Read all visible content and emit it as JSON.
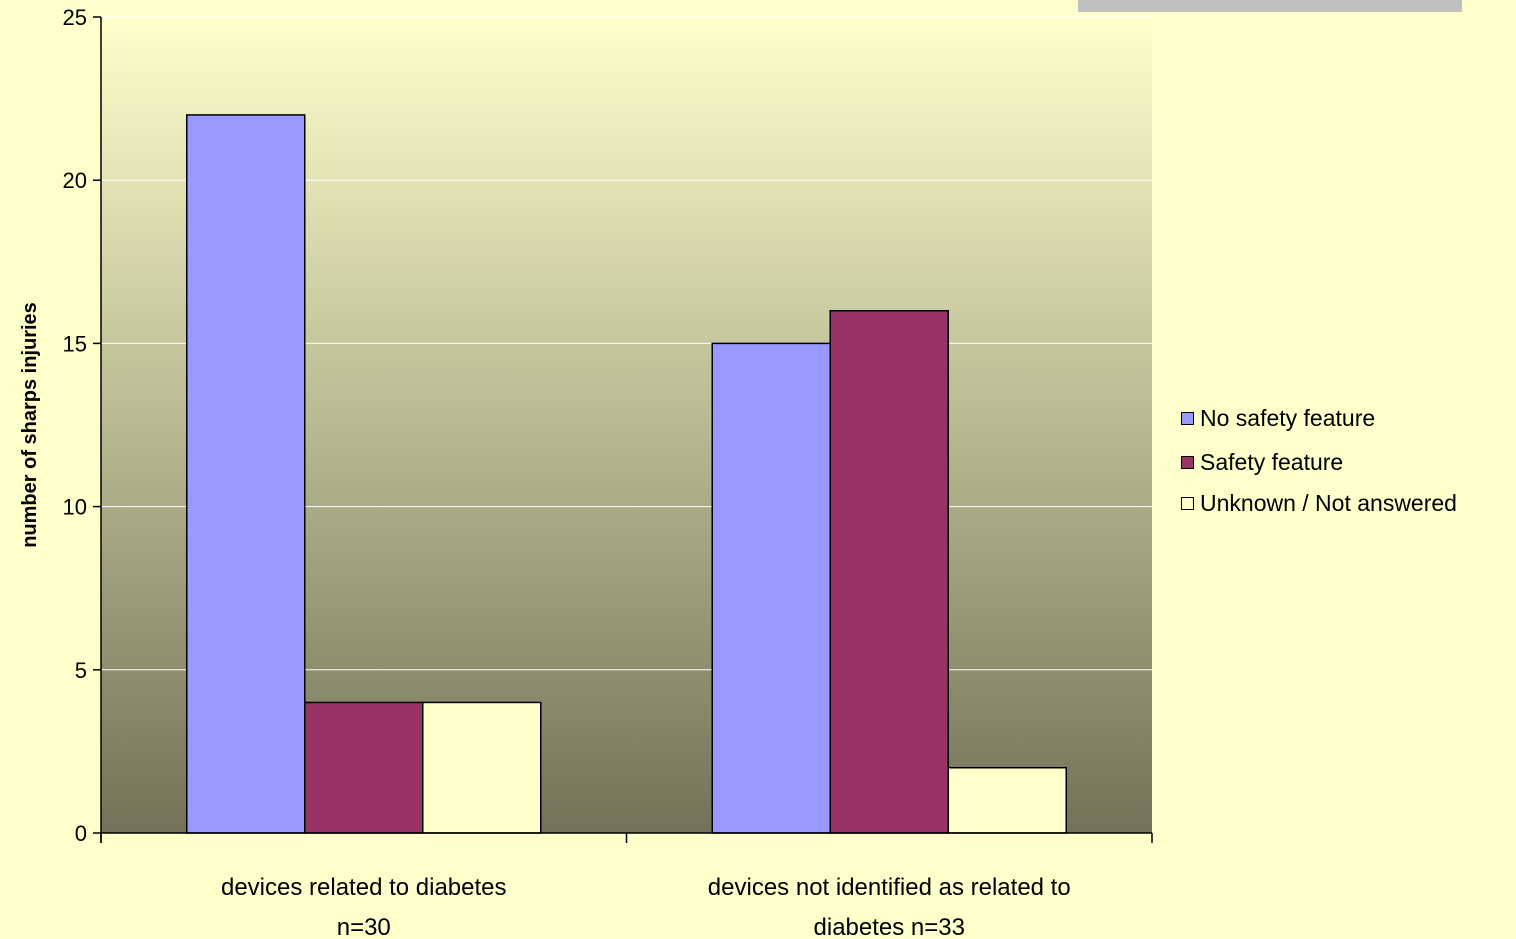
{
  "chart_data": {
    "type": "bar",
    "categories": [
      "devices related to diabetes n=30",
      "devices not identified as related to diabetes n=33"
    ],
    "category_lines": [
      [
        "devices related to diabetes",
        "n=30"
      ],
      [
        "devices not identified as related to",
        "diabetes n=33"
      ]
    ],
    "series": [
      {
        "name": "No safety feature",
        "color": "#9999FF",
        "values": [
          22,
          15
        ]
      },
      {
        "name": "Safety feature",
        "color": "#993366",
        "values": [
          4,
          16
        ]
      },
      {
        "name": "Unknown / Not answered",
        "color": "#FFFFCC",
        "values": [
          4,
          2
        ]
      }
    ],
    "ylabel": "number of sharps injuries",
    "xlabel": "",
    "ylim": [
      0,
      25
    ],
    "yticks": [
      0,
      5,
      10,
      15,
      20,
      25
    ],
    "grid": true,
    "legend_position": "right"
  }
}
